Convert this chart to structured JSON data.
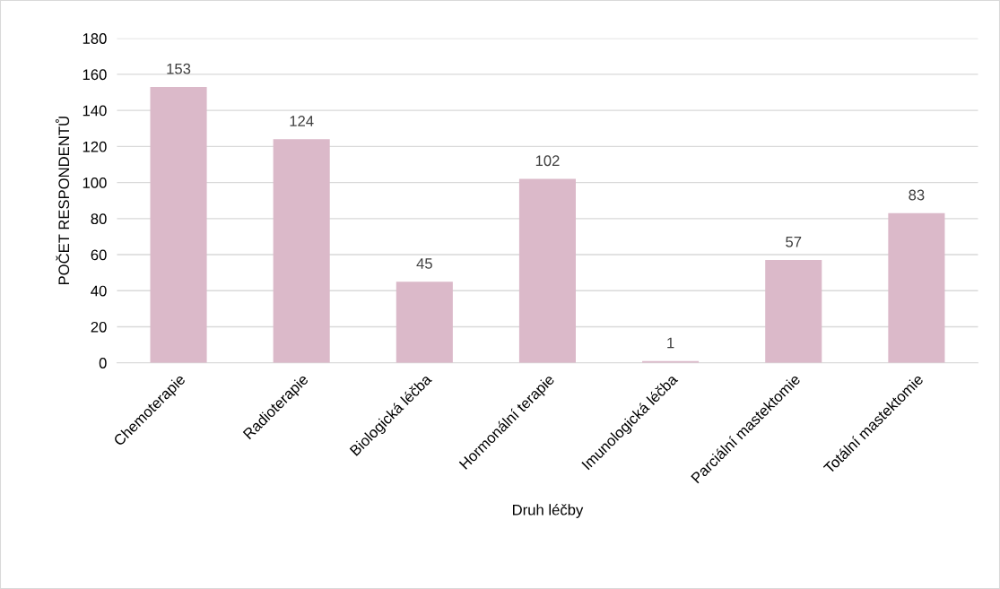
{
  "chart_data": {
    "type": "bar",
    "categories": [
      "Chemoterapie",
      "Radioterapie",
      "Biologická léčba",
      "Hormonální terapie",
      "Imunologická léčba",
      "Parciální mastektomie",
      "Totální mastektomie"
    ],
    "values": [
      153,
      124,
      45,
      102,
      1,
      57,
      83
    ],
    "color": "#dbb9c9",
    "xlabel": "Druh léčby",
    "ylabel": "POČET RESPONDENTŮ",
    "ylim": [
      0,
      180
    ],
    "yticks": [
      0,
      20,
      40,
      60,
      80,
      100,
      120,
      140,
      160,
      180
    ],
    "grid": "y",
    "data_labels": true
  }
}
